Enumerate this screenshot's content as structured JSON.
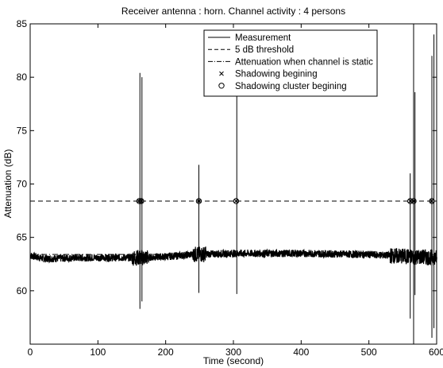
{
  "chart_data": {
    "type": "line",
    "title": "Receiver antenna : horn. Channel activity : 4 persons",
    "xlabel": "Time (second)",
    "ylabel": "Attenuation (dB)",
    "xlim": [
      0,
      600
    ],
    "ylim": [
      55,
      85
    ],
    "xticks": [
      0,
      100,
      200,
      300,
      400,
      500,
      600
    ],
    "yticks": [
      60,
      65,
      70,
      75,
      80,
      85
    ],
    "grid": false,
    "legend_position": "top-right",
    "legend": [
      {
        "label": "Measurement",
        "style": "solid-line"
      },
      {
        "label": "5 dB threshold",
        "style": "dashed-line"
      },
      {
        "label": "Attenuation when channel is static",
        "style": "dash-dot-line"
      },
      {
        "label": "Shadowing begining",
        "style": "x-marker"
      },
      {
        "label": "Shadowing cluster begining",
        "style": "circle-marker"
      }
    ],
    "series": [
      {
        "name": "Measurement",
        "baseline": [
          [
            0,
            63.3
          ],
          [
            20,
            63.0
          ],
          [
            80,
            63.1
          ],
          [
            160,
            63.1
          ],
          [
            200,
            63.2
          ],
          [
            240,
            63.4
          ],
          [
            300,
            63.5
          ],
          [
            400,
            63.5
          ],
          [
            500,
            63.4
          ],
          [
            560,
            63.2
          ],
          [
            600,
            63.1
          ]
        ],
        "spikes": [
          {
            "x": 162,
            "min": 58.3,
            "max": 80.4
          },
          {
            "x": 165,
            "min": 59.0,
            "max": 80.0
          },
          {
            "x": 249,
            "min": 59.8,
            "max": 71.8
          },
          {
            "x": 305,
            "min": 59.7,
            "max": 78.6
          },
          {
            "x": 561,
            "min": 57.4,
            "max": 71.0
          },
          {
            "x": 566,
            "min": 55.0,
            "max": 85.0
          },
          {
            "x": 568,
            "min": 59.6,
            "max": 78.6
          },
          {
            "x": 593,
            "min": 55.6,
            "max": 82.0
          },
          {
            "x": 596,
            "min": 56.5,
            "max": 84.0
          }
        ]
      },
      {
        "name": "5 dB threshold",
        "y": 68.4
      },
      {
        "name": "Attenuation when channel is static",
        "y": 63.4
      },
      {
        "name": "Shadowing cluster begining",
        "x": [
          161,
          164,
          249,
          304,
          561,
          566,
          593
        ],
        "y": 68.4
      },
      {
        "name": "Shadowing begining",
        "x": [
          161,
          164,
          249,
          304,
          561,
          566,
          593
        ],
        "y": 68.4
      }
    ]
  }
}
